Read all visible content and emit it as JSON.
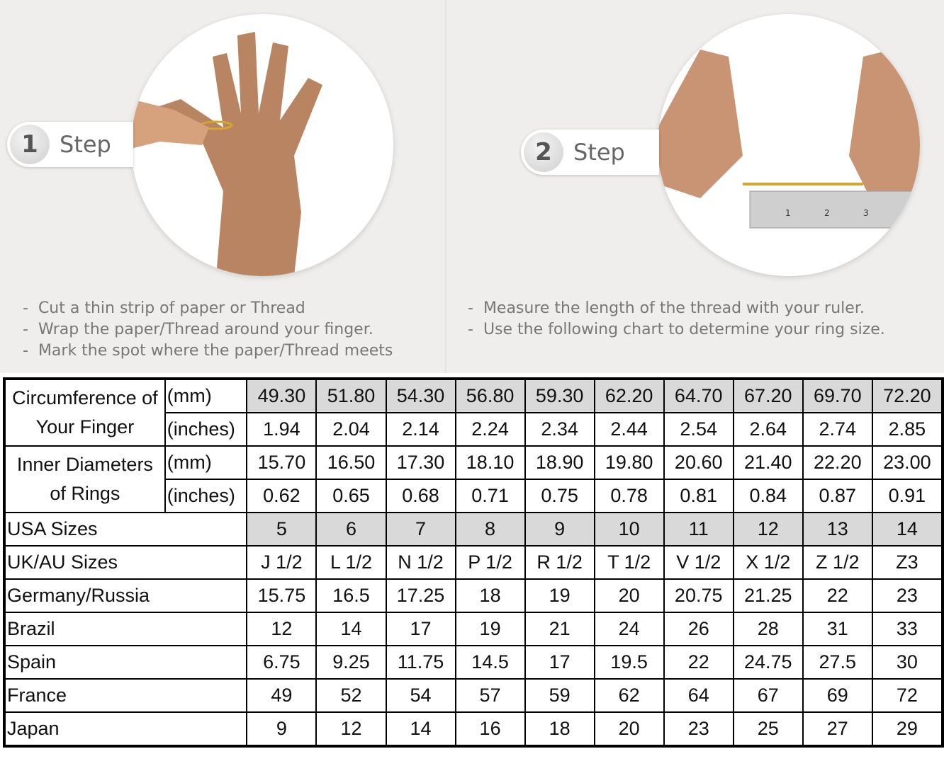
{
  "steps": [
    {
      "number": "1",
      "label": "Step",
      "bullets": [
        "Cut a thin strip of paper or Thread",
        "Wrap the paper/Thread around your finger.",
        "Mark the spot where the paper/Thread meets"
      ]
    },
    {
      "number": "2",
      "label": "Step",
      "bullets": [
        "Measure the length of the thread with your ruler.",
        "Use the following chart to determine your ring size."
      ]
    }
  ],
  "table": {
    "circumference": {
      "label": "Circumference of Your Finger",
      "mm_label": "(mm)",
      "in_label": "(inches)",
      "mm": [
        "49.30",
        "51.80",
        "54.30",
        "56.80",
        "59.30",
        "62.20",
        "64.70",
        "67.20",
        "69.70",
        "72.20"
      ],
      "inches": [
        "1.94",
        "2.04",
        "2.14",
        "2.24",
        "2.34",
        "2.44",
        "2.54",
        "2.64",
        "2.74",
        "2.85"
      ]
    },
    "inner": {
      "label": "Inner Diameters of Rings",
      "mm_label": "(mm)",
      "in_label": "(inches)",
      "mm": [
        "15.70",
        "16.50",
        "17.30",
        "18.10",
        "18.90",
        "19.80",
        "20.60",
        "21.40",
        "22.20",
        "23.00"
      ],
      "inches": [
        "0.62",
        "0.65",
        "0.68",
        "0.71",
        "0.75",
        "0.78",
        "0.81",
        "0.84",
        "0.87",
        "0.91"
      ]
    },
    "rows": [
      {
        "label": "USA Sizes",
        "shaded": true,
        "values": [
          "5",
          "6",
          "7",
          "8",
          "9",
          "10",
          "11",
          "12",
          "13",
          "14"
        ]
      },
      {
        "label": "UK/AU Sizes",
        "values": [
          "J 1/2",
          "L 1/2",
          "N 1/2",
          "P 1/2",
          "R 1/2",
          "T 1/2",
          "V 1/2",
          "X 1/2",
          "Z 1/2",
          "Z3"
        ]
      },
      {
        "label": "Germany/Russia",
        "values": [
          "15.75",
          "16.5",
          "17.25",
          "18",
          "19",
          "20",
          "20.75",
          "21.25",
          "22",
          "23"
        ]
      },
      {
        "label": "Brazil",
        "values": [
          "12",
          "14",
          "17",
          "19",
          "21",
          "24",
          "26",
          "28",
          "31",
          "33"
        ]
      },
      {
        "label": "Spain",
        "values": [
          "6.75",
          "9.25",
          "11.75",
          "14.5",
          "17",
          "19.5",
          "22",
          "24.75",
          "27.5",
          "30"
        ]
      },
      {
        "label": "France",
        "values": [
          "49",
          "52",
          "54",
          "57",
          "59",
          "62",
          "64",
          "67",
          "69",
          "72"
        ]
      },
      {
        "label": "Japan",
        "values": [
          "9",
          "12",
          "14",
          "16",
          "18",
          "20",
          "23",
          "25",
          "27",
          "29"
        ]
      }
    ],
    "shade_color": "#d9d9d9"
  }
}
